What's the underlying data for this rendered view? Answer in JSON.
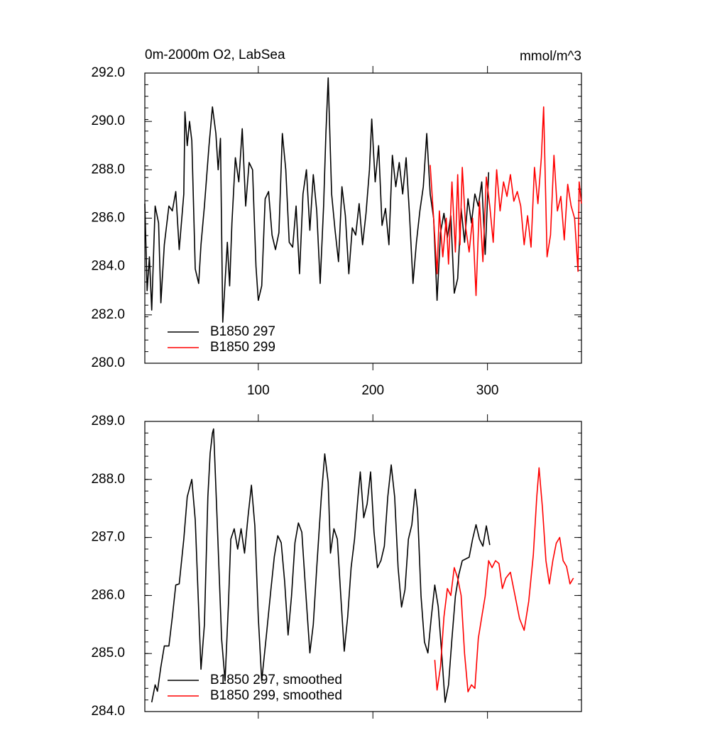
{
  "chart_data": [
    {
      "type": "line",
      "title": "0m-2000m O2, LabSea",
      "subtitle": "mmol/m^3",
      "xlim": [
        1,
        382
      ],
      "xticks": [
        100,
        200,
        300
      ],
      "ylim": [
        280,
        292
      ],
      "yticks": [
        {
          "value": 280,
          "label": "280.0"
        },
        {
          "value": 282,
          "label": "282.0"
        },
        {
          "value": 284,
          "label": "284.0"
        },
        {
          "value": 286,
          "label": "286.0"
        },
        {
          "value": 288,
          "label": "288.0"
        },
        {
          "value": 290,
          "label": "290.0"
        },
        {
          "value": 292,
          "label": "292.0"
        }
      ],
      "legend": "lower left",
      "series": [
        {
          "name": "B1850 297",
          "color": "#000000",
          "x": [
            1,
            3,
            5,
            7,
            10,
            13,
            15,
            18,
            22,
            25,
            28,
            31,
            35,
            36,
            38,
            40,
            42,
            45,
            48,
            50,
            53,
            57,
            60,
            63,
            65,
            67,
            69,
            73,
            75,
            77,
            80,
            83,
            86,
            89,
            92,
            95,
            98,
            100,
            103,
            106,
            109,
            112,
            115,
            118,
            121,
            124,
            127,
            130,
            133,
            136,
            139,
            142,
            145,
            148,
            151,
            154,
            157,
            159,
            161,
            164,
            167,
            170,
            173,
            176,
            179,
            182,
            185,
            188,
            191,
            194,
            197,
            199,
            202,
            205,
            208,
            211,
            214,
            217,
            220,
            223,
            226,
            229,
            232,
            235,
            238,
            241,
            244,
            247,
            250,
            253,
            256,
            259,
            262,
            265,
            268,
            271,
            274,
            277,
            280,
            283,
            286,
            289,
            292,
            295,
            298,
            301
          ],
          "values": [
            286.6,
            283.0,
            284.4,
            282.2,
            286.5,
            285.8,
            282.5,
            284.9,
            286.5,
            286.3,
            287.1,
            284.7,
            287.0,
            290.4,
            289.0,
            290.0,
            289.2,
            283.9,
            283.3,
            284.9,
            286.5,
            289.0,
            290.6,
            289.5,
            288.0,
            289.3,
            281.7,
            285.0,
            283.2,
            285.8,
            288.5,
            287.5,
            289.7,
            286.5,
            288.3,
            288.0,
            284.0,
            282.6,
            283.2,
            286.8,
            287.1,
            285.3,
            284.7,
            285.4,
            289.5,
            288.0,
            285.0,
            284.8,
            286.5,
            283.7,
            287.0,
            288.0,
            285.5,
            287.8,
            286.3,
            283.3,
            286.5,
            289.5,
            291.8,
            287.0,
            285.5,
            284.2,
            287.3,
            286.1,
            283.7,
            285.6,
            285.3,
            286.6,
            284.9,
            286.2,
            288.0,
            290.1,
            287.5,
            289.0,
            285.7,
            286.4,
            284.9,
            288.6,
            287.3,
            288.3,
            287.0,
            288.5,
            286.1,
            283.3,
            285.0,
            286.3,
            287.3,
            289.5,
            287.0,
            286.0,
            282.6,
            285.4,
            286.2,
            285.2,
            286.1,
            282.9,
            283.5,
            286.4,
            285.0,
            286.8,
            285.8,
            287.0,
            286.5,
            287.5,
            284.5,
            287.9
          ]
        },
        {
          "name": "B1850 299",
          "color": "#ff0000",
          "x": [
            250,
            253,
            256,
            258,
            261,
            264,
            266,
            269,
            272,
            274,
            276,
            278,
            281,
            284,
            287,
            290,
            293,
            296,
            299,
            302,
            305,
            308,
            311,
            314,
            317,
            320,
            323,
            326,
            329,
            332,
            335,
            338,
            341,
            344,
            347,
            349,
            352,
            355,
            358,
            361,
            364,
            367,
            370,
            373,
            376,
            379,
            380,
            382
          ],
          "values": [
            288.2,
            286.0,
            283.7,
            286.3,
            284.4,
            286.0,
            284.1,
            287.5,
            284.6,
            287.8,
            284.9,
            288.1,
            285.6,
            284.6,
            286.0,
            282.8,
            286.7,
            284.2,
            287.7,
            286.5,
            285.0,
            288.0,
            286.3,
            287.5,
            286.9,
            287.8,
            286.7,
            287.1,
            286.5,
            284.9,
            286.1,
            284.8,
            288.1,
            286.6,
            288.5,
            290.6,
            284.4,
            285.3,
            288.6,
            286.3,
            286.9,
            285.1,
            287.4,
            286.5,
            286.0,
            283.8,
            287.5,
            286.6
          ]
        }
      ]
    },
    {
      "type": "line",
      "xlim": [
        1,
        382
      ],
      "xticks": [
        100,
        200,
        300
      ],
      "ylim": [
        284,
        289
      ],
      "yticks": [
        {
          "value": 284,
          "label": "284.0"
        },
        {
          "value": 285,
          "label": "285.0"
        },
        {
          "value": 286,
          "label": "286.0"
        },
        {
          "value": 287,
          "label": "287.0"
        },
        {
          "value": 288,
          "label": "288.0"
        },
        {
          "value": 289,
          "label": "289.0"
        }
      ],
      "legend": "lower left",
      "series": [
        {
          "name": "B1850 297, smoothed",
          "color": "#000000",
          "x": [
            7,
            10,
            12,
            15,
            18,
            22,
            25,
            28,
            31,
            35,
            38,
            42,
            45,
            48,
            50,
            53,
            56,
            58,
            60,
            61,
            64,
            68,
            71,
            74,
            76,
            79,
            82,
            85,
            88,
            91,
            94,
            97,
            100,
            103,
            107,
            111,
            114,
            117,
            120,
            123,
            126,
            129,
            132,
            135,
            138,
            141,
            145,
            148,
            151,
            155,
            158,
            161,
            163,
            166,
            169,
            172,
            175,
            178,
            181,
            184,
            187,
            189,
            192,
            195,
            198,
            201,
            204,
            207,
            210,
            213,
            216,
            219,
            222,
            225,
            228,
            231,
            234,
            237,
            239,
            242,
            245,
            248,
            251,
            254,
            257,
            260,
            263,
            266,
            269,
            272,
            275,
            278,
            281,
            284,
            287,
            290,
            293,
            296,
            299,
            302
          ],
          "values": [
            284.16,
            284.46,
            284.35,
            284.77,
            285.13,
            285.13,
            285.63,
            286.18,
            286.2,
            286.97,
            287.7,
            288.0,
            287.3,
            285.75,
            284.73,
            285.5,
            287.7,
            288.45,
            288.8,
            288.87,
            287.35,
            285.25,
            284.53,
            285.87,
            286.97,
            287.15,
            286.8,
            287.15,
            286.73,
            287.35,
            287.9,
            287.2,
            285.63,
            284.53,
            285.3,
            286.1,
            286.67,
            287.03,
            286.91,
            286.24,
            285.32,
            285.99,
            286.91,
            287.25,
            287.09,
            286.18,
            285.01,
            285.5,
            286.48,
            287.7,
            288.44,
            287.95,
            286.73,
            287.15,
            286.97,
            285.99,
            285.04,
            285.63,
            286.48,
            286.97,
            287.7,
            288.13,
            287.34,
            287.58,
            288.13,
            287.09,
            286.48,
            286.6,
            286.85,
            287.7,
            288.25,
            287.7,
            286.48,
            285.8,
            286.1,
            286.97,
            287.22,
            287.83,
            287.46,
            285.99,
            285.2,
            285.01,
            285.63,
            286.18,
            285.81,
            285.01,
            284.16,
            284.46,
            285.26,
            285.99,
            286.36,
            286.6,
            286.63,
            286.66,
            286.97,
            287.22,
            286.97,
            286.85,
            287.2,
            286.87
          ]
        },
        {
          "name": "B1850 299, smoothed",
          "color": "#ff0000",
          "x": [
            254,
            256,
            259,
            262,
            265,
            268,
            271,
            274,
            277,
            280,
            283,
            286,
            289,
            292,
            295,
            298,
            301,
            304,
            307,
            310,
            313,
            316,
            320,
            324,
            328,
            332,
            336,
            340,
            343,
            345,
            348,
            351,
            354,
            357,
            360,
            363,
            366,
            369,
            372,
            375
          ],
          "values": [
            284.89,
            284.37,
            284.77,
            285.63,
            286.12,
            286.0,
            286.48,
            286.3,
            286.0,
            285.0,
            284.34,
            284.46,
            284.4,
            285.26,
            285.63,
            285.99,
            286.6,
            286.48,
            286.6,
            286.55,
            286.12,
            286.3,
            286.4,
            286.0,
            285.6,
            285.4,
            285.9,
            286.7,
            287.7,
            288.2,
            287.5,
            286.6,
            286.2,
            286.6,
            286.9,
            287.0,
            286.6,
            286.5,
            286.2,
            286.3
          ]
        }
      ]
    }
  ]
}
